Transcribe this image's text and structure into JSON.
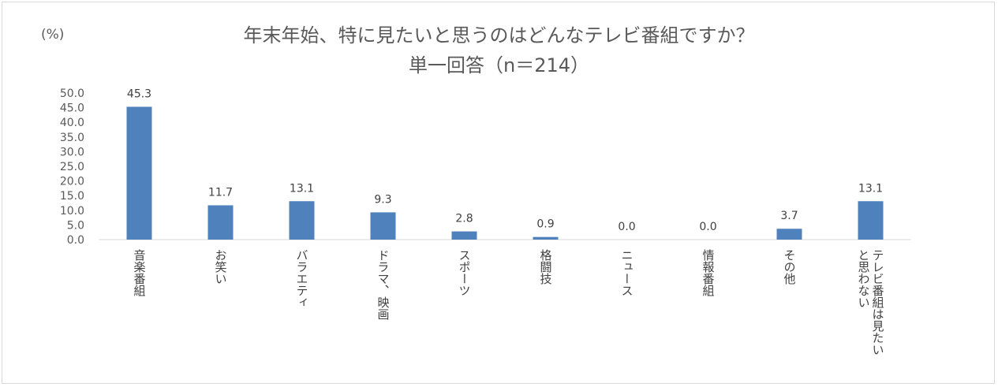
{
  "chart_data": {
    "type": "bar",
    "title_line1": "年末年始、特に見たいと思うのはどんなテレビ番組ですか？",
    "title_line2": "単一回答（n＝214）",
    "unit_label": "(%)",
    "categories": [
      "音楽番組",
      "お笑い",
      "バラエティ",
      "ドラマ、映画",
      "スポーツ",
      "格闘技",
      "ニュース",
      "情報番組",
      "その他",
      "テレビ番組は見たいと思わない"
    ],
    "category_lines": [
      [
        "音楽番組"
      ],
      [
        "お笑い"
      ],
      [
        "バラエティ"
      ],
      [
        "ドラマ、映画"
      ],
      [
        "スポーツ"
      ],
      [
        "格闘技"
      ],
      [
        "ニュース"
      ],
      [
        "情報番組"
      ],
      [
        "その他"
      ],
      [
        "テレビ番組は見たい",
        "と思わない"
      ]
    ],
    "values": [
      45.3,
      11.7,
      13.1,
      9.3,
      2.8,
      0.9,
      0.0,
      0.0,
      3.7,
      13.1
    ],
    "data_labels": [
      "45.3",
      "11.7",
      "13.1",
      "9.3",
      "2.8",
      "0.9",
      "0.0",
      "0.0",
      "3.7",
      "13.1"
    ],
    "ylim": [
      0,
      50
    ],
    "y_ticks": [
      "0.0",
      "5.0",
      "10.0",
      "15.0",
      "20.0",
      "25.0",
      "30.0",
      "35.0",
      "40.0",
      "45.0",
      "50.0"
    ],
    "bar_color": "#4f81bd",
    "grid": false,
    "legend": "none"
  }
}
